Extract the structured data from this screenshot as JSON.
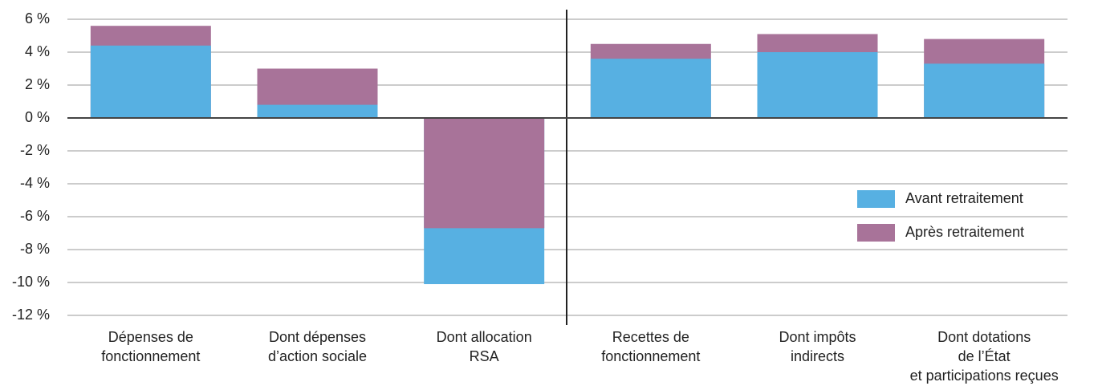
{
  "chart_data": {
    "type": "bar",
    "categories": [
      [
        "Dépenses de",
        "fonctionnement"
      ],
      [
        "Dont dépenses",
        "d’action sociale"
      ],
      [
        "Dont allocation",
        "RSA"
      ],
      [
        "Recettes de",
        "fonctionnement"
      ],
      [
        "Dont impôts",
        "indirects"
      ],
      [
        "Dont dotations",
        "de l’État",
        "et participations reçues"
      ]
    ],
    "series": [
      {
        "name": "Avant retraitement",
        "color": "#57b0e2",
        "values": [
          4.4,
          0.8,
          -10.1,
          3.6,
          4.0,
          3.3
        ]
      },
      {
        "name": "Après retraitement",
        "color": "#a87399",
        "values": [
          5.6,
          3.0,
          -6.7,
          4.5,
          5.1,
          4.8
        ]
      }
    ],
    "ylim": [
      -12,
      6
    ],
    "yticks": [
      {
        "value": 6,
        "label": "6 %"
      },
      {
        "value": 4,
        "label": "4 %"
      },
      {
        "value": 2,
        "label": "2 %"
      },
      {
        "value": 0,
        "label": "0 %"
      },
      {
        "value": -2,
        "label": "-2 %"
      },
      {
        "value": -4,
        "label": "-4 %"
      },
      {
        "value": -6,
        "label": "-6 %"
      },
      {
        "value": -8,
        "label": "-8 %"
      },
      {
        "value": -10,
        "label": "-10 %"
      },
      {
        "value": -12,
        "label": "-12 %"
      }
    ],
    "grid": true
  }
}
